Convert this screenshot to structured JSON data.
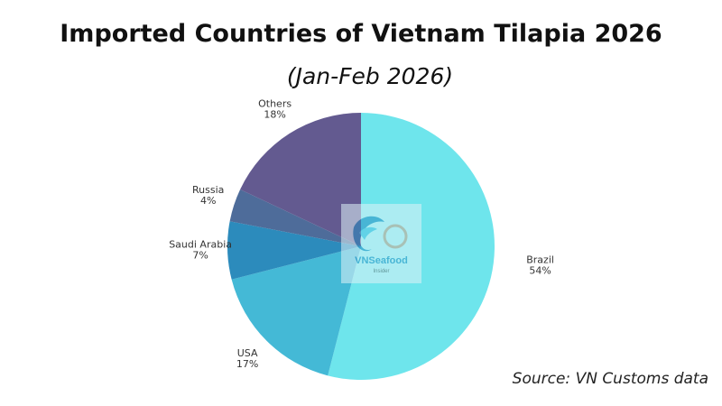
{
  "header": {
    "title": "Imported Countries of Vietnam Tilapia 2026",
    "subtitle": "(Jan-Feb 2026)"
  },
  "footer": {
    "source": "Source: VN Customs data"
  },
  "watermark": {
    "brand": "VNSeafood",
    "tagline": "Insider"
  },
  "chart_data": {
    "type": "pie",
    "title": "Imported Countries of Vietnam Tilapia 2026",
    "subtitle": "(Jan-Feb 2026)",
    "unit": "%",
    "slices": [
      {
        "label": "Brazil",
        "value": 54,
        "color": "#6ee5ec"
      },
      {
        "label": "USA",
        "value": 17,
        "color": "#44b9d6"
      },
      {
        "label": "Saudi Arabia",
        "value": 7,
        "color": "#2c8bbc"
      },
      {
        "label": "Russia",
        "value": 4,
        "color": "#4e6c9a"
      },
      {
        "label": "Others",
        "value": 18,
        "color": "#635a90"
      }
    ]
  }
}
